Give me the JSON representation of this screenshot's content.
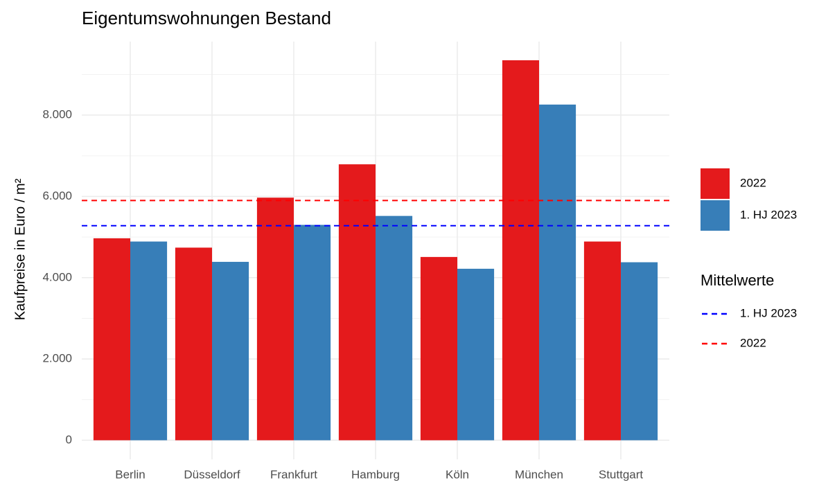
{
  "chart_data": {
    "type": "bar",
    "title": "Eigentumswohnungen Bestand",
    "y_label": "Kaufpreise in Euro / m²",
    "categories": [
      "Berlin",
      "Düsseldorf",
      "Frankfurt",
      "Hamburg",
      "Köln",
      "München",
      "Stuttgart"
    ],
    "series": [
      {
        "name": "2022",
        "color": "#e41a1c",
        "values": [
          4970,
          4740,
          5970,
          6790,
          4510,
          9350,
          4890
        ]
      },
      {
        "name": "1. HJ 2023",
        "color": "#377eb8",
        "values": [
          4890,
          4390,
          5300,
          5520,
          4220,
          8260,
          4380
        ]
      }
    ],
    "reference_lines_title": "Mittelwerte",
    "reference_lines": [
      {
        "name": "1. HJ 2023",
        "color": "#0000ff",
        "value": 5280
      },
      {
        "name": "2022",
        "color": "#ff0000",
        "value": 5900
      }
    ],
    "ylim": [
      -470,
      9810
    ],
    "yticks": [
      0,
      {
        "value": 2000,
        "label": "2.000"
      },
      {
        "value": 4000,
        "label": "4.000"
      },
      {
        "value": 6000,
        "label": "6.000"
      },
      {
        "value": 8000,
        "label": "8.000"
      }
    ],
    "minor_yticks": [
      1000,
      3000,
      5000,
      7000,
      9000
    ],
    "grid": true
  }
}
